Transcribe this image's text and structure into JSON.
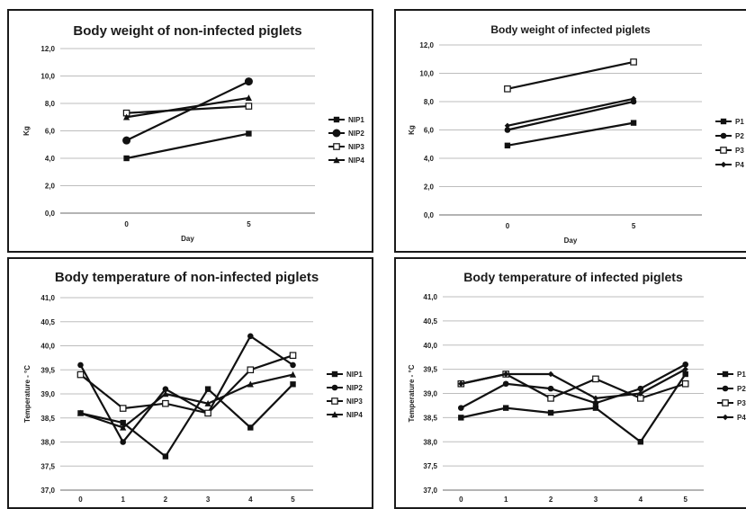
{
  "chart_data": [
    {
      "type": "line",
      "title": "Body weight of non-infected piglets",
      "xlabel": "Day",
      "ylabel": "Kg",
      "categories": [
        "0",
        "5"
      ],
      "ylim": [
        0,
        12
      ],
      "yticks": [
        "0,0",
        "2,0",
        "4,0",
        "6,0",
        "8,0",
        "10,0",
        "12,0"
      ],
      "grid": true,
      "legend": "right",
      "series": [
        {
          "name": "NIP1",
          "marker": "square-filled",
          "values": [
            4.0,
            5.8
          ]
        },
        {
          "name": "NIP2",
          "marker": "circle-large",
          "values": [
            5.3,
            9.6
          ]
        },
        {
          "name": "NIP3",
          "marker": "square-open",
          "values": [
            7.3,
            7.8
          ]
        },
        {
          "name": "NIP4",
          "marker": "triangle",
          "values": [
            7.0,
            8.4
          ]
        }
      ]
    },
    {
      "type": "line",
      "title": "Body weight of infected piglets",
      "xlabel": "Day",
      "ylabel": "Kg",
      "categories": [
        "0",
        "5"
      ],
      "ylim": [
        0,
        12
      ],
      "yticks": [
        "0,0",
        "2,0",
        "4,0",
        "6,0",
        "8,0",
        "10,0",
        "12,0"
      ],
      "grid": true,
      "legend": "right",
      "series": [
        {
          "name": "P1",
          "marker": "square-filled",
          "values": [
            4.9,
            6.5
          ]
        },
        {
          "name": "P2",
          "marker": "circle",
          "values": [
            6.0,
            8.0
          ]
        },
        {
          "name": "P3",
          "marker": "square-open",
          "values": [
            8.9,
            10.8
          ]
        },
        {
          "name": "P4",
          "marker": "diamond",
          "values": [
            6.3,
            8.2
          ]
        }
      ]
    },
    {
      "type": "line",
      "title": "Body temperature of non-infected piglets",
      "xlabel": "Day",
      "ylabel": "Temperature - °C",
      "categories": [
        "0",
        "1",
        "2",
        "3",
        "4",
        "5"
      ],
      "ylim": [
        37.0,
        41.0
      ],
      "yticks": [
        "37,0",
        "37,5",
        "38,0",
        "38,5",
        "39,0",
        "39,5",
        "40,0",
        "40,5",
        "41,0"
      ],
      "grid": true,
      "legend": "right",
      "series": [
        {
          "name": "NIP1",
          "marker": "square-filled",
          "values": [
            38.6,
            38.4,
            37.7,
            39.1,
            38.3,
            39.2
          ]
        },
        {
          "name": "NIP2",
          "marker": "circle",
          "values": [
            39.6,
            38.0,
            39.1,
            38.6,
            40.2,
            39.6
          ]
        },
        {
          "name": "NIP3",
          "marker": "square-open",
          "values": [
            39.4,
            38.7,
            38.8,
            38.6,
            39.5,
            39.8
          ]
        },
        {
          "name": "NIP4",
          "marker": "triangle",
          "values": [
            38.6,
            38.3,
            39.0,
            38.8,
            39.2,
            39.4
          ]
        }
      ]
    },
    {
      "type": "line",
      "title": "Body temperature of infected piglets",
      "xlabel": "Day",
      "ylabel": "Temperature - °C",
      "categories": [
        "0",
        "1",
        "2",
        "3",
        "4",
        "5"
      ],
      "ylim": [
        37.0,
        41.0
      ],
      "yticks": [
        "37,0",
        "37,5",
        "38,0",
        "38,5",
        "39,0",
        "39,5",
        "40,0",
        "40,5",
        "41,0"
      ],
      "grid": true,
      "legend": "right",
      "series": [
        {
          "name": "P1",
          "marker": "square-filled",
          "values": [
            38.5,
            38.7,
            38.6,
            38.7,
            38.0,
            39.4
          ]
        },
        {
          "name": "P2",
          "marker": "circle",
          "values": [
            38.7,
            39.2,
            39.1,
            38.8,
            39.1,
            39.6
          ]
        },
        {
          "name": "P3",
          "marker": "square-open",
          "values": [
            39.2,
            39.4,
            38.9,
            39.3,
            38.9,
            39.2
          ]
        },
        {
          "name": "P4",
          "marker": "diamond",
          "values": [
            39.2,
            39.4,
            39.4,
            38.9,
            39.0,
            39.5
          ]
        }
      ]
    }
  ]
}
